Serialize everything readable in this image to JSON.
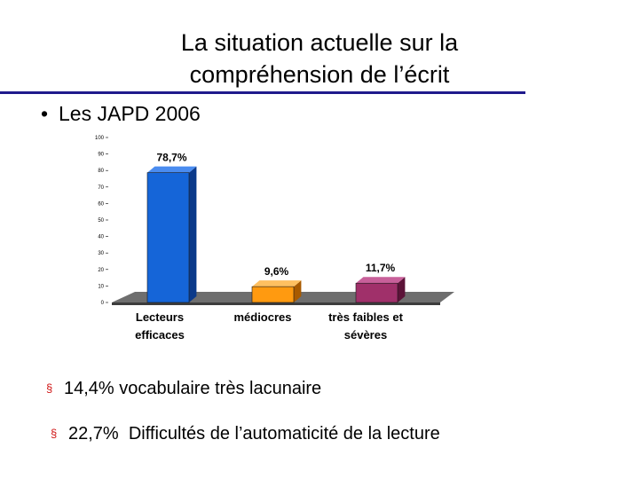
{
  "slide": {
    "title_line1": "La situation actuelle sur la",
    "title_line2": "compréhension de l’écrit",
    "bullet_marker": "•",
    "bullet_text": "Les JAPD 2006"
  },
  "chart_data": {
    "type": "bar",
    "categories": [
      [
        "Lecteurs",
        "efficaces"
      ],
      [
        "médiocres"
      ],
      [
        "très faibles et",
        "sévères"
      ]
    ],
    "values": [
      78.7,
      9.6,
      11.7
    ],
    "data_labels": [
      "78,7%",
      "9,6%",
      "11,7%"
    ],
    "yticks": [
      0,
      10,
      20,
      30,
      40,
      50,
      60,
      70,
      80,
      90,
      100
    ],
    "ylim": [
      0,
      100
    ],
    "style": "3d",
    "colors": {
      "front": [
        "#1565d8",
        "#ff9a10",
        "#a0306a"
      ],
      "side": [
        "#0b3a8a",
        "#a85a00",
        "#5c1338"
      ],
      "top": [
        "#4a8cf0",
        "#ffc060",
        "#c8609a"
      ],
      "floor": "#6e6e6e",
      "floor_dark": "#3c3c3c"
    }
  },
  "stats": [
    {
      "marker": "§",
      "value": "14,4%",
      "text": "vocabulaire très lacunaire"
    },
    {
      "marker": "§",
      "value": "22,7%",
      "text": "Difficultés de l’automaticité de la lecture"
    }
  ]
}
